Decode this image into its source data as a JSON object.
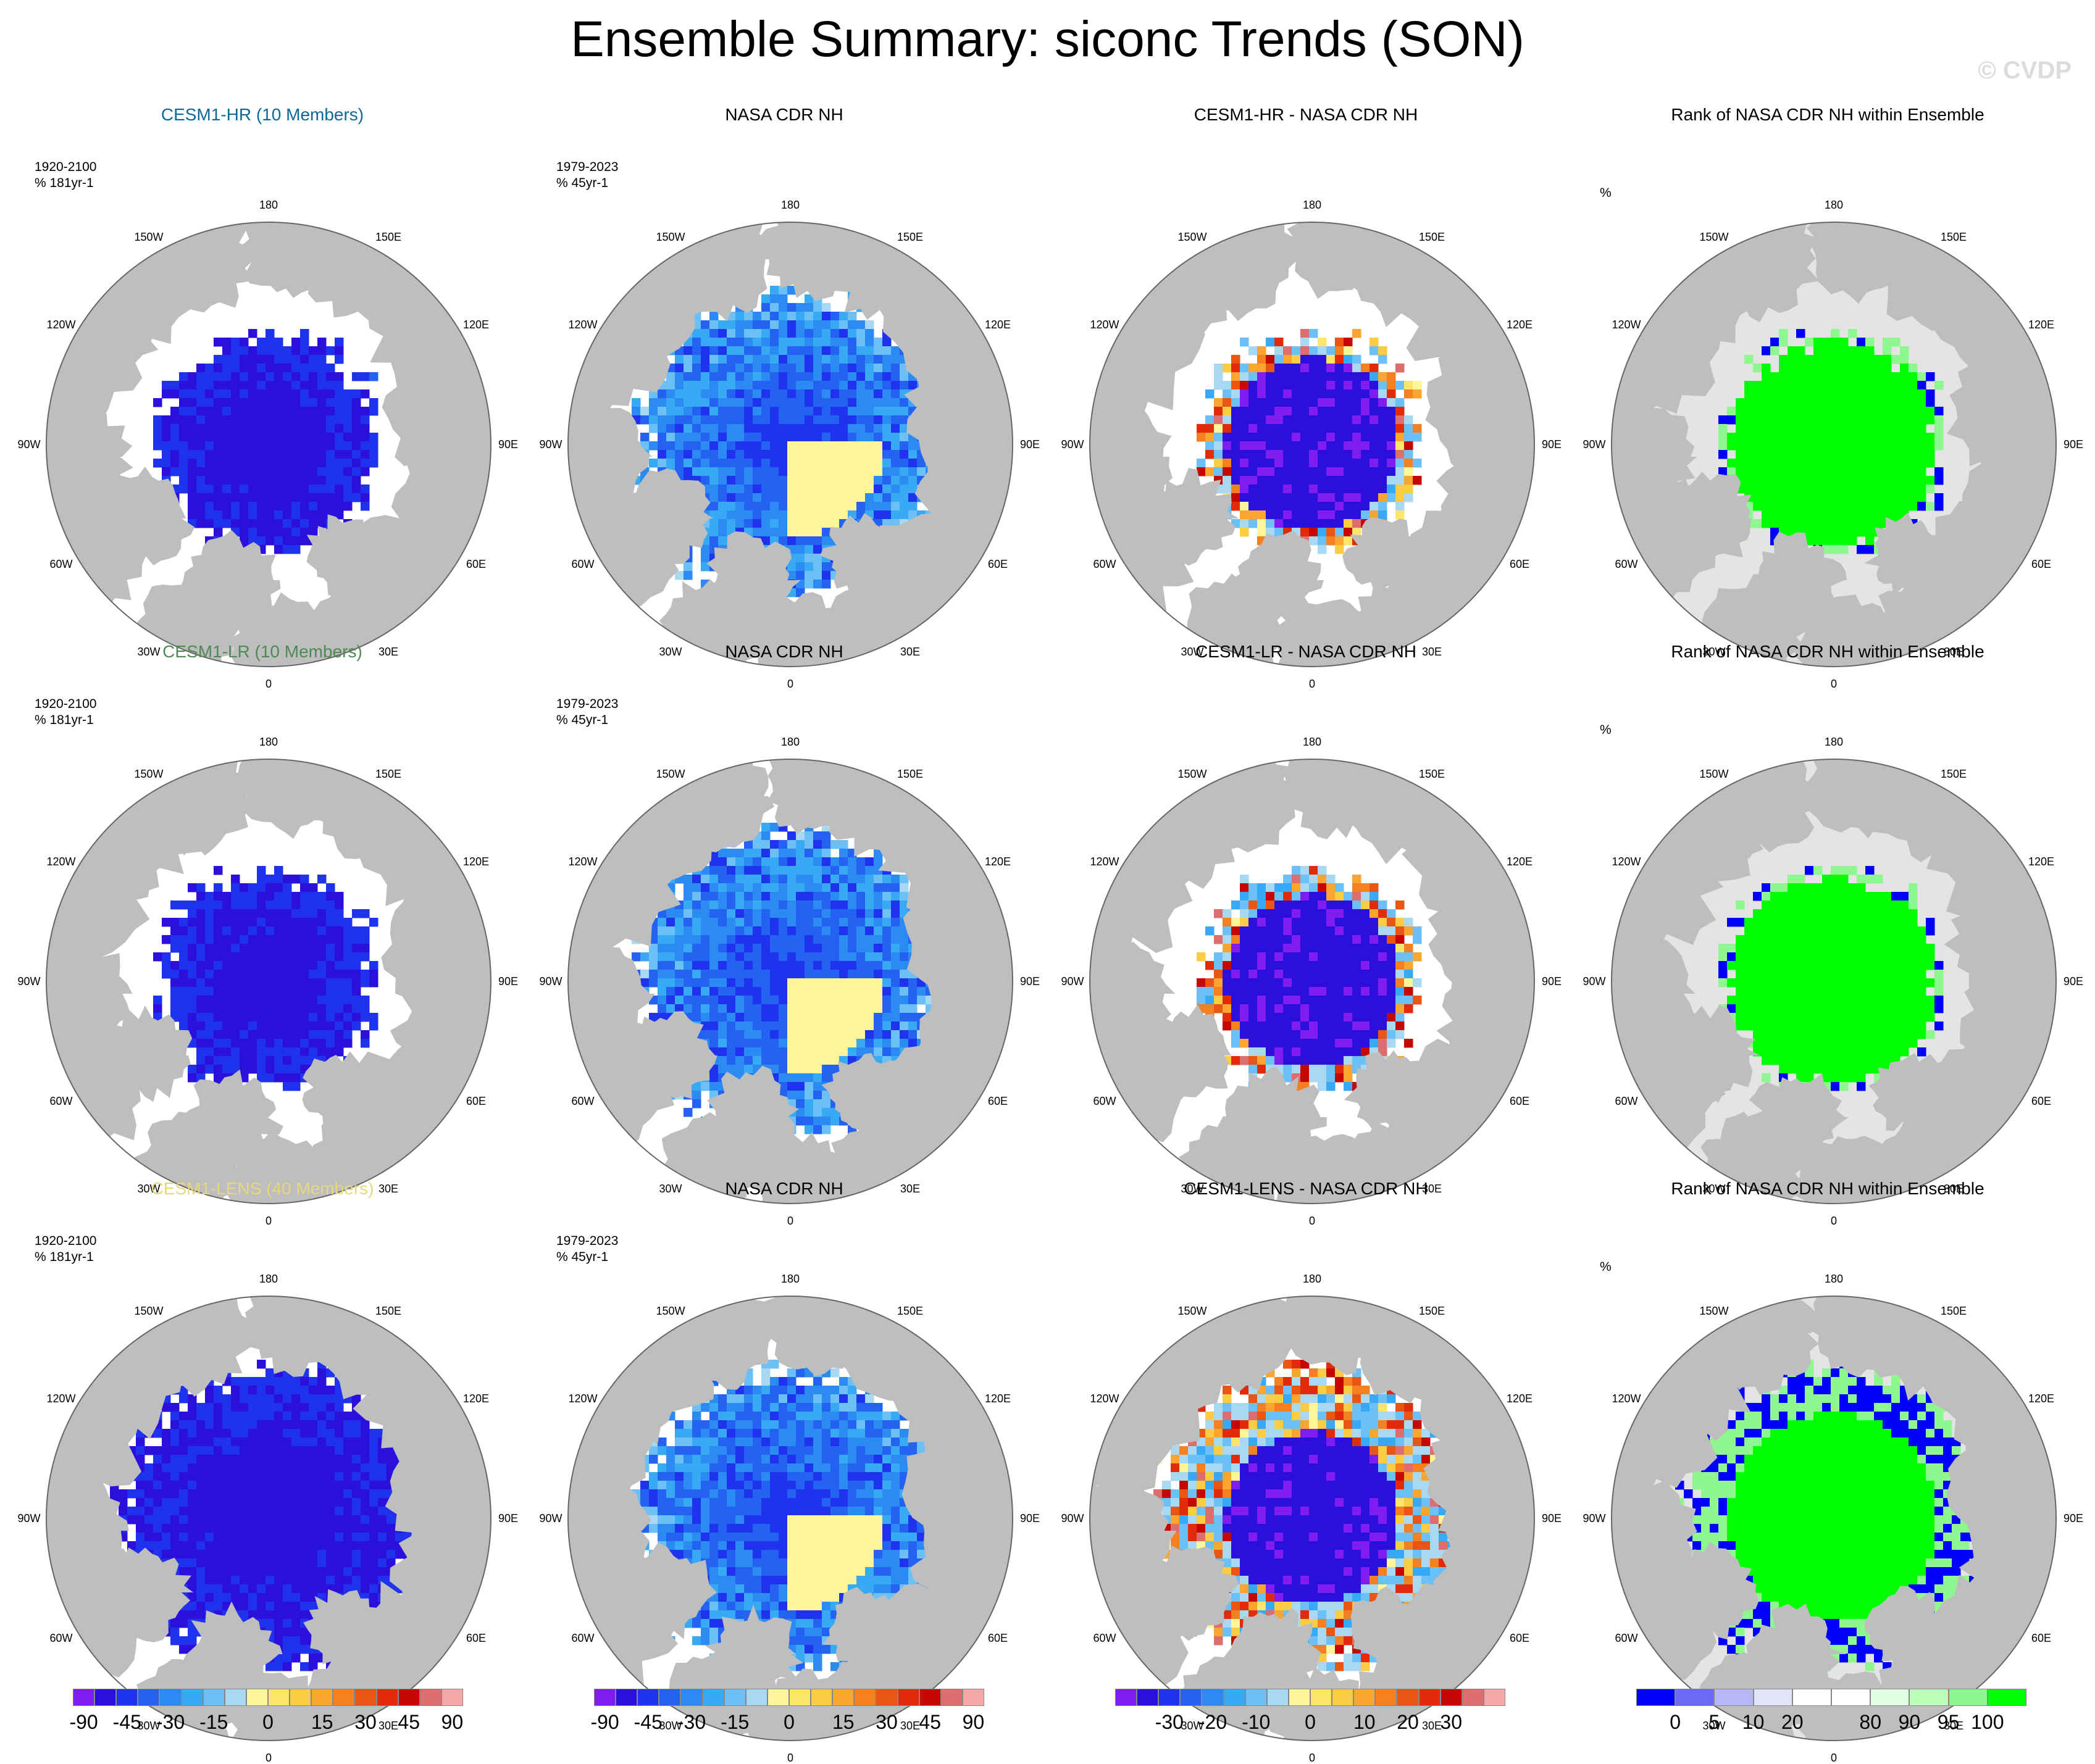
{
  "header": {
    "title": "Ensemble Summary: siconc Trends (SON)",
    "watermark": "© CVDP"
  },
  "colors": {
    "land": "#bebebe",
    "ocean": "#ffffff",
    "rank_background": "#e4e4e4",
    "trend_palette": [
      "#7f1cf0",
      "#2b0fdc",
      "#1f33ef",
      "#2463f1",
      "#2c8af3",
      "#38a9f5",
      "#6cc0f6",
      "#a9d8f3",
      "#fff59a",
      "#fde46b",
      "#fccc45",
      "#f9a52f",
      "#f48021",
      "#ea5513",
      "#e12b09",
      "#c60803",
      "#de6e6e",
      "#f6a8a8"
    ],
    "diff_palette": [
      "#7f1cf0",
      "#2b0fdc",
      "#1f33ef",
      "#2463f1",
      "#2c8af3",
      "#38a9f5",
      "#6cc0f6",
      "#a9d8f3",
      "#fff59a",
      "#fde46b",
      "#fccc45",
      "#f9a52f",
      "#f48021",
      "#ea5513",
      "#e12b09",
      "#c60803",
      "#de6e6e",
      "#f6a8a8"
    ],
    "rank_palette": [
      "#0000ff",
      "#6a6af2",
      "#b7b7f7",
      "#e3e3fa",
      "#ffffff",
      "#ffffff",
      "#e2ffe2",
      "#bbffbb",
      "#8ff78f",
      "#00ff00"
    ]
  },
  "longitude_labels": [
    "180",
    "150E",
    "120E",
    "90E",
    "60E",
    "30E",
    "0",
    "30W",
    "60W",
    "90W",
    "120W",
    "150W"
  ],
  "chart_data": [
    {
      "type": "heatmap",
      "title": "CESM1-HR (10 Members)",
      "title_color": "#0a6a99",
      "period": "1920-2100",
      "units": "% 181yr-1",
      "style": "model",
      "coverage": "core",
      "intensity": 0.92,
      "seed": 11
    },
    {
      "type": "heatmap",
      "title": "NASA CDR NH",
      "period": "1979-2023",
      "units": "% 45yr-1",
      "style": "obs",
      "coverage": "wide",
      "intensity": 0.55,
      "seed": 23
    },
    {
      "type": "heatmap",
      "title": "CESM1-HR - NASA CDR NH",
      "style": "diff",
      "coverage": "core",
      "intensity": 0.8,
      "seed": 37
    },
    {
      "type": "heatmap",
      "title": "Rank of NASA CDR NH within Ensemble",
      "units": "%",
      "style": "rank",
      "coverage": "core",
      "intensity": 0.95,
      "seed": 41
    },
    {
      "type": "heatmap",
      "title": "CESM1-LR (10 Members)",
      "title_color": "#4f8a56",
      "period": "1920-2100",
      "units": "% 181yr-1",
      "style": "model",
      "coverage": "core",
      "intensity": 0.9,
      "seed": 53
    },
    {
      "type": "heatmap",
      "title": "NASA CDR NH",
      "period": "1979-2023",
      "units": "% 45yr-1",
      "style": "obs",
      "coverage": "wide",
      "intensity": 0.55,
      "seed": 67
    },
    {
      "type": "heatmap",
      "title": "CESM1-LR - NASA CDR NH",
      "style": "diff",
      "coverage": "core",
      "intensity": 0.78,
      "seed": 71
    },
    {
      "type": "heatmap",
      "title": "Rank of NASA CDR NH within Ensemble",
      "units": "%",
      "style": "rank",
      "coverage": "core",
      "intensity": 0.95,
      "seed": 83
    },
    {
      "type": "heatmap",
      "title": "CESM1-LENS (40 Members)",
      "title_color": "#e6d87c",
      "period": "1920-2100",
      "units": "% 181yr-1",
      "style": "model",
      "coverage": "wide",
      "intensity": 0.92,
      "seed": 97
    },
    {
      "type": "heatmap",
      "title": "NASA CDR NH",
      "period": "1979-2023",
      "units": "% 45yr-1",
      "style": "obs",
      "coverage": "wide",
      "intensity": 0.55,
      "seed": 101
    },
    {
      "type": "heatmap",
      "title": "CESM1-LENS - NASA CDR NH",
      "style": "diff",
      "coverage": "wide",
      "intensity": 0.7,
      "seed": 113
    },
    {
      "type": "heatmap",
      "title": "Rank of NASA CDR NH within Ensemble",
      "units": "%",
      "style": "rank",
      "coverage": "wide",
      "intensity": 0.95,
      "seed": 127
    }
  ],
  "colorbars": [
    {
      "palette": "trend_palette",
      "ticks": [
        {
          "label": "-90",
          "pos": 0.0278
        },
        {
          "label": "-45",
          "pos": 0.1389
        },
        {
          "label": "-30",
          "pos": 0.25
        },
        {
          "label": "-15",
          "pos": 0.3611
        },
        {
          "label": "0",
          "pos": 0.5
        },
        {
          "label": "15",
          "pos": 0.6389
        },
        {
          "label": "30",
          "pos": 0.75
        },
        {
          "label": "45",
          "pos": 0.8611
        },
        {
          "label": "90",
          "pos": 0.9722
        }
      ]
    },
    {
      "palette": "trend_palette",
      "ticks": [
        {
          "label": "-90",
          "pos": 0.0278
        },
        {
          "label": "-45",
          "pos": 0.1389
        },
        {
          "label": "-30",
          "pos": 0.25
        },
        {
          "label": "-15",
          "pos": 0.3611
        },
        {
          "label": "0",
          "pos": 0.5
        },
        {
          "label": "15",
          "pos": 0.6389
        },
        {
          "label": "30",
          "pos": 0.75
        },
        {
          "label": "45",
          "pos": 0.8611
        },
        {
          "label": "90",
          "pos": 0.9722
        }
      ]
    },
    {
      "palette": "diff_palette",
      "ticks": [
        {
          "label": "-30",
          "pos": 0.1389
        },
        {
          "label": "-20",
          "pos": 0.25
        },
        {
          "label": "-10",
          "pos": 0.3611
        },
        {
          "label": "0",
          "pos": 0.5
        },
        {
          "label": "10",
          "pos": 0.6389
        },
        {
          "label": "20",
          "pos": 0.75
        },
        {
          "label": "30",
          "pos": 0.8611
        }
      ]
    },
    {
      "palette": "rank_palette",
      "ticks": [
        {
          "label": "0",
          "pos": 0.1
        },
        {
          "label": "5",
          "pos": 0.2
        },
        {
          "label": "10",
          "pos": 0.3
        },
        {
          "label": "20",
          "pos": 0.4
        },
        {
          "label": "80",
          "pos": 0.6
        },
        {
          "label": "90",
          "pos": 0.7
        },
        {
          "label": "95",
          "pos": 0.8
        },
        {
          "label": "100",
          "pos": 0.9
        }
      ]
    }
  ]
}
